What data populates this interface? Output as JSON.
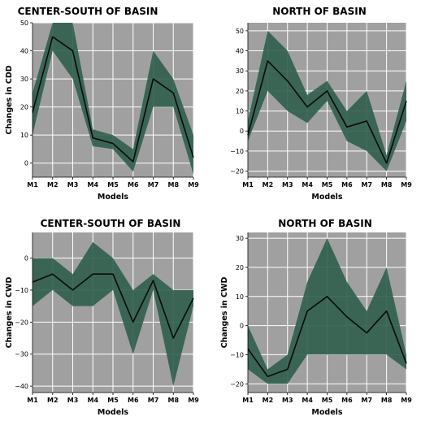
{
  "chart_data": [
    {
      "type": "area",
      "title": "CENTER-SOUTH OF BASIN",
      "xlabel": "Models",
      "ylabel": "Changes in CDD",
      "categories": [
        "M1",
        "M2",
        "M3",
        "M4",
        "M5",
        "M6",
        "M7",
        "M8",
        "M9"
      ],
      "yticks": [
        0,
        10,
        20,
        30,
        40,
        50
      ],
      "ylim": [
        -5,
        50
      ],
      "grid": true,
      "series": [
        {
          "role": "mean",
          "values": [
            18,
            45,
            40,
            9,
            7,
            0.5,
            30,
            25,
            2
          ]
        },
        {
          "role": "upper",
          "values": [
            25,
            50,
            50,
            12,
            10,
            5,
            40,
            30,
            10
          ]
        },
        {
          "role": "lower",
          "values": [
            10,
            40,
            30,
            6,
            5,
            -3,
            20,
            20,
            -4
          ]
        }
      ]
    },
    {
      "type": "area",
      "title": "NORTH OF BASIN",
      "xlabel": "Models",
      "ylabel": "",
      "categories": [
        "M1",
        "M2",
        "M3",
        "M4",
        "M5",
        "M6",
        "M7",
        "M8",
        "M9"
      ],
      "yticks": [
        -20,
        -10,
        0,
        10,
        20,
        30,
        40,
        50
      ],
      "ylim": [
        -23,
        54
      ],
      "grid": true,
      "series": [
        {
          "role": "mean",
          "values": [
            -2,
            35,
            25,
            12,
            20,
            2,
            5,
            -16,
            15
          ]
        },
        {
          "role": "upper",
          "values": [
            5,
            50,
            40,
            18,
            25,
            10,
            20,
            -12,
            25
          ]
        },
        {
          "role": "lower",
          "values": [
            -5,
            20,
            10,
            4,
            15,
            -5,
            -10,
            -20,
            5
          ]
        }
      ]
    },
    {
      "type": "area",
      "title": "CENTER-SOUTH OF BASIN",
      "xlabel": "Models",
      "ylabel": "Changes in CWD",
      "categories": [
        "M1",
        "M2",
        "M3",
        "M4",
        "M5",
        "M6",
        "M7",
        "M8",
        "M9"
      ],
      "yticks": [
        -40,
        -30,
        -20,
        -10,
        0
      ],
      "ylim": [
        -42,
        8
      ],
      "grid": true,
      "series": [
        {
          "role": "mean",
          "values": [
            -7.5,
            -5,
            -10,
            -5,
            -5,
            -20,
            -7,
            -25,
            -12.5
          ]
        },
        {
          "role": "upper",
          "values": [
            0,
            0,
            -5,
            5,
            0,
            -10,
            -5,
            -10,
            -10
          ]
        },
        {
          "role": "lower",
          "values": [
            -15,
            -10,
            -15,
            -15,
            -10,
            -30,
            -10,
            -40,
            -15
          ]
        }
      ]
    },
    {
      "type": "area",
      "title": "NORTH OF BASIN",
      "xlabel": "Models",
      "ylabel": "Changes in CWD",
      "categories": [
        "M1",
        "M2",
        "M3",
        "M4",
        "M5",
        "M6",
        "M7",
        "M8",
        "M9"
      ],
      "yticks": [
        -20,
        -10,
        0,
        10,
        20,
        30
      ],
      "ylim": [
        -23,
        32
      ],
      "grid": true,
      "series": [
        {
          "role": "mean",
          "values": [
            -8,
            -17.5,
            -15,
            5,
            10,
            3,
            -2.5,
            5,
            -13
          ]
        },
        {
          "role": "upper",
          "values": [
            0,
            -15,
            -10,
            15,
            30,
            15,
            5,
            20,
            -10
          ]
        },
        {
          "role": "lower",
          "values": [
            -15,
            -20,
            -20,
            -10,
            -10,
            -10,
            -10,
            -10,
            -15
          ]
        }
      ]
    }
  ],
  "colors": {
    "plot_background": "#a0a0a0",
    "band_fill": "#2f5e4c",
    "mean_line": "#0a0a0a",
    "grid": "#ffffff"
  }
}
